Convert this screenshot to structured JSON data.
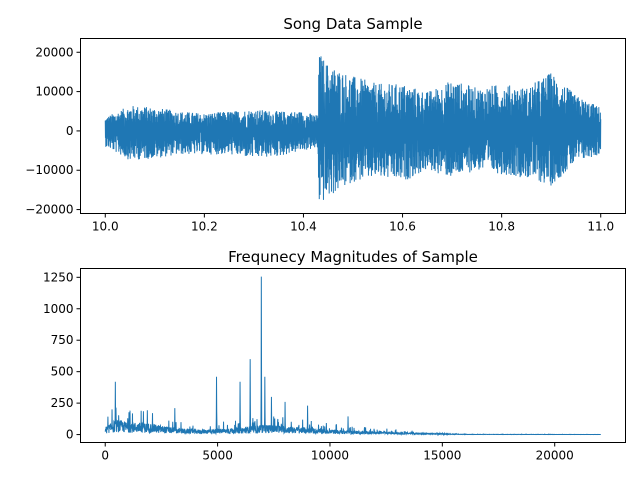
{
  "chart_data": [
    {
      "type": "line",
      "title": "Song Data Sample",
      "xlabel": "",
      "ylabel": "",
      "xlim": [
        9.95,
        11.05
      ],
      "ylim": [
        -21000,
        23500
      ],
      "xticks": [
        10.0,
        10.2,
        10.4,
        10.6,
        10.8,
        11.0
      ],
      "xtick_labels": [
        "10.0",
        "10.2",
        "10.4",
        "10.6",
        "10.8",
        "11.0"
      ],
      "yticks": [
        -20000,
        -10000,
        0,
        10000,
        20000
      ],
      "ytick_labels": [
        "−20000",
        "−10000",
        "0",
        "10000",
        "20000"
      ],
      "grid": false,
      "color": "#1f77b4",
      "series": [
        {
          "x_range": [
            10.0,
            11.0
          ],
          "envelope": {
            "x": [
              10.0,
              10.05,
              10.1,
              10.15,
              10.2,
              10.25,
              10.3,
              10.35,
              10.4,
              10.428,
              10.432,
              10.45,
              10.5,
              10.55,
              10.6,
              10.65,
              10.7,
              10.75,
              10.8,
              10.85,
              10.9,
              10.95,
              11.0
            ],
            "upper": [
              3500,
              6500,
              6000,
              5000,
              4500,
              5000,
              5500,
              5000,
              5000,
              4000,
              20000,
              17000,
              14000,
              12000,
              12000,
              10000,
              13000,
              11000,
              12000,
              11000,
              15000,
              9000,
              6000
            ],
            "lower": [
              -4000,
              -7500,
              -7000,
              -6000,
              -6000,
              -6000,
              -7000,
              -6500,
              -5000,
              -4500,
              -19000,
              -17000,
              -13000,
              -12000,
              -13000,
              -10000,
              -12000,
              -10000,
              -11000,
              -12000,
              -14000,
              -8000,
              -6000
            ]
          }
        }
      ]
    },
    {
      "type": "line",
      "title": "Frequnecy Magnitudes of Sample",
      "xlabel": "",
      "ylabel": "",
      "xlim": [
        -1100,
        23150
      ],
      "ylim": [
        -63,
        1320
      ],
      "xticks": [
        0,
        5000,
        10000,
        15000,
        20000
      ],
      "xtick_labels": [
        "0",
        "5000",
        "10000",
        "15000",
        "20000"
      ],
      "yticks": [
        0,
        250,
        500,
        750,
        1000,
        1250
      ],
      "ytick_labels": [
        "0",
        "250",
        "500",
        "750",
        "1000",
        "1250"
      ],
      "grid": false,
      "color": "#1f77b4",
      "series": [
        {
          "x_range": [
            0,
            22050
          ],
          "baseline": {
            "x": [
              0,
              500,
              1000,
              2000,
              3000,
              4000,
              5000,
              6000,
              7000,
              8000,
              9000,
              10000,
              11000,
              12000,
              13000,
              14000,
              15000,
              16000,
              22050
            ],
            "y": [
              60,
              120,
              100,
              90,
              55,
              40,
              45,
              55,
              80,
              70,
              55,
              40,
              30,
              25,
              20,
              12,
              8,
              2,
              1
            ]
          },
          "peaks": [
            {
              "x": 300,
              "y": 200
            },
            {
              "x": 450,
              "y": 420
            },
            {
              "x": 1100,
              "y": 190
            },
            {
              "x": 1700,
              "y": 185
            },
            {
              "x": 3100,
              "y": 210
            },
            {
              "x": 4950,
              "y": 460
            },
            {
              "x": 6000,
              "y": 420
            },
            {
              "x": 6450,
              "y": 600
            },
            {
              "x": 6950,
              "y": 1255
            },
            {
              "x": 7100,
              "y": 460
            },
            {
              "x": 7400,
              "y": 300
            },
            {
              "x": 8000,
              "y": 260
            },
            {
              "x": 9000,
              "y": 230
            },
            {
              "x": 10800,
              "y": 145
            }
          ]
        }
      ]
    }
  ]
}
